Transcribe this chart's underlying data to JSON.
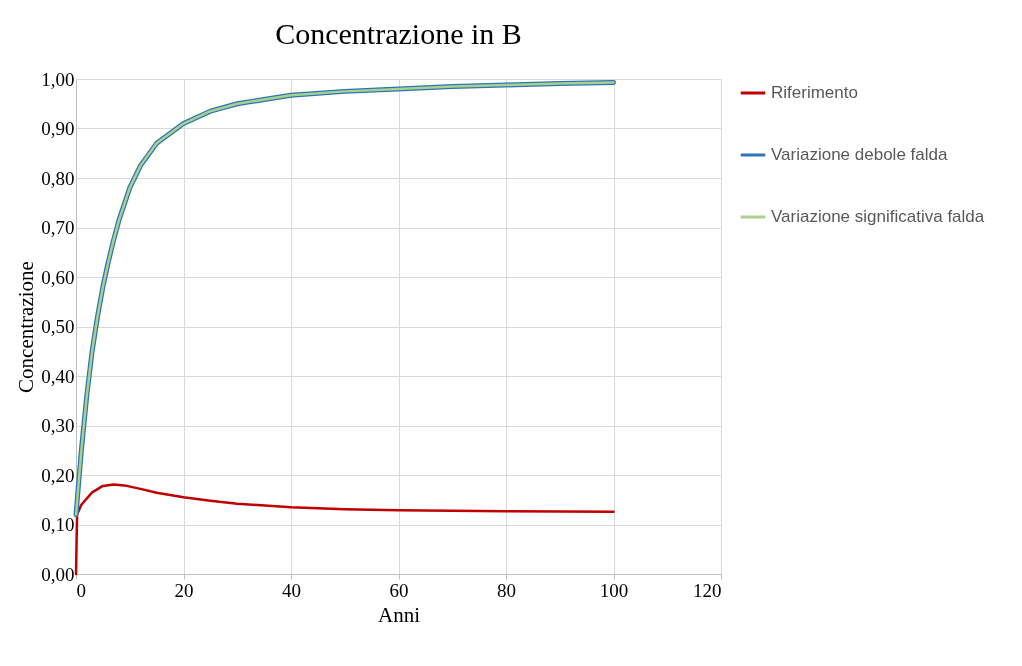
{
  "chart_data": {
    "type": "line",
    "title": "Concentrazione in B",
    "xlabel": "Anni",
    "ylabel": "Concentrazione",
    "xlim": [
      0,
      120
    ],
    "xticks": [
      0,
      20,
      40,
      60,
      80,
      100,
      120
    ],
    "ylim": [
      0,
      1
    ],
    "yticks": [
      {
        "value": 0,
        "label": "0,00"
      },
      {
        "value": 0.1,
        "label": "0,10"
      },
      {
        "value": 0.2,
        "label": "0,20"
      },
      {
        "value": 0.3,
        "label": "0,30"
      },
      {
        "value": 0.4,
        "label": "0,40"
      },
      {
        "value": 0.5,
        "label": "0,50"
      },
      {
        "value": 0.6,
        "label": "0,60"
      },
      {
        "value": 0.7,
        "label": "0,70"
      },
      {
        "value": 0.8,
        "label": "0,80"
      },
      {
        "value": 0.9,
        "label": "0,90"
      },
      {
        "value": 1.0,
        "label": "1,00"
      }
    ],
    "grid": true,
    "legend": "right",
    "marker": "none",
    "line_style": "solid",
    "series": [
      {
        "name": "Riferimento",
        "color": "#c00000",
        "x": [
          0,
          0.2,
          1,
          3,
          5,
          7,
          9,
          12,
          15,
          20,
          25,
          30,
          40,
          50,
          60,
          80,
          100
        ],
        "values": [
          0,
          0.12,
          0.14,
          0.165,
          0.178,
          0.181,
          0.179,
          0.172,
          0.164,
          0.155,
          0.148,
          0.142,
          0.135,
          0.131,
          0.129,
          0.127,
          0.126
        ]
      },
      {
        "name": "Variazione debole falda",
        "color": "#2e75b6",
        "x": [
          0,
          1,
          2,
          3,
          4,
          5,
          6,
          7,
          8,
          10,
          12,
          15,
          20,
          25,
          30,
          40,
          50,
          60,
          70,
          80,
          90,
          100
        ],
        "values": [
          0.12,
          0.25,
          0.36,
          0.45,
          0.52,
          0.58,
          0.63,
          0.675,
          0.715,
          0.78,
          0.825,
          0.87,
          0.91,
          0.935,
          0.95,
          0.967,
          0.975,
          0.98,
          0.985,
          0.988,
          0.991,
          0.993
        ]
      },
      {
        "name": "Variazione significativa falda",
        "color": "#a9d18e",
        "x": [
          0,
          1,
          2,
          3,
          4,
          5,
          6,
          7,
          8,
          10,
          12,
          15,
          20,
          25,
          30,
          40,
          50,
          60,
          70,
          80,
          90,
          100
        ],
        "values": [
          0.12,
          0.25,
          0.36,
          0.45,
          0.52,
          0.58,
          0.63,
          0.675,
          0.715,
          0.78,
          0.825,
          0.87,
          0.91,
          0.935,
          0.95,
          0.967,
          0.975,
          0.98,
          0.985,
          0.988,
          0.991,
          0.993
        ]
      }
    ]
  }
}
